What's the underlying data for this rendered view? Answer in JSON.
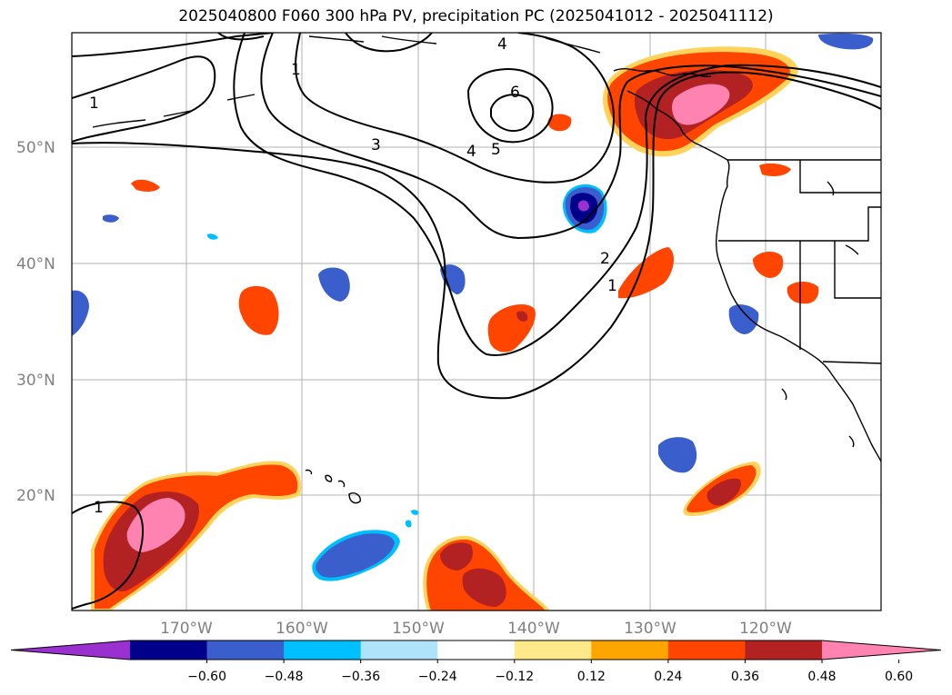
{
  "title": "2025040800 F060 300 hPa PV, precipitation PC (2025041012 - 2025041112)",
  "lat_labels": [
    "50°N",
    "40°N",
    "30°N",
    "20°N"
  ],
  "lon_labels": [
    "170°W",
    "160°W",
    "150°W",
    "140°W",
    "130°W",
    "120°W"
  ],
  "contour_labels": [
    "1",
    "3",
    "4",
    "5",
    "6",
    "4",
    "2",
    "1",
    "1",
    "1"
  ],
  "colorbar": {
    "ticks": [
      "−0.60",
      "−0.48",
      "−0.36",
      "−0.24",
      "−0.12",
      "0.12",
      "0.24",
      "0.36",
      "0.48",
      "0.60"
    ],
    "colors": [
      "#9b30d0",
      "#00008b",
      "#3a5fcd",
      "#00bfff",
      "#aee3fb",
      "#ffffff",
      "#ffe98a",
      "#ffa500",
      "#ff4500",
      "#b22222",
      "#ff83b0"
    ]
  },
  "colors": {
    "neg_strong": "#00008b",
    "neg_mid": "#3a5fcd",
    "neg_light": "#00bfff",
    "pos_light": "#ffa500",
    "pos_mid": "#ff4500",
    "pos_strong": "#b22222",
    "pos_max": "#ff83b0"
  }
}
